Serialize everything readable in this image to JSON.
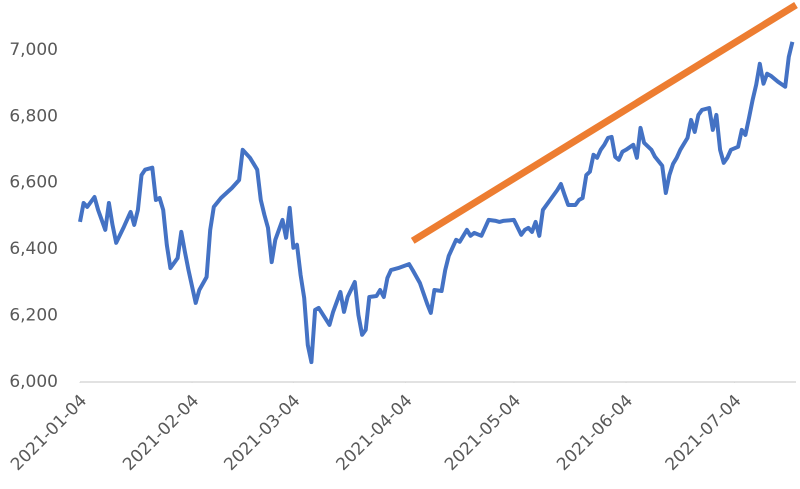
{
  "chart_data": {
    "type": "line",
    "xlim": [
      "2021-01-04",
      "2021-07-21"
    ],
    "xticks": [
      "2021-01-04",
      "2021-02-04",
      "2021-03-04",
      "2021-04-04",
      "2021-05-04",
      "2021-06-04",
      "2021-07-04"
    ],
    "ylim": [
      6000,
      7150
    ],
    "yticks": [
      {
        "value": 6000,
        "label": "6,000"
      },
      {
        "value": 6200,
        "label": "6,200"
      },
      {
        "value": 6400,
        "label": "6,400"
      },
      {
        "value": 6600,
        "label": "6,600"
      },
      {
        "value": 6800,
        "label": "6,800"
      },
      {
        "value": 7000,
        "label": "7,000"
      }
    ],
    "grid": false,
    "series": [
      {
        "color": "#4472c4",
        "x": [
          "2021-01-04",
          "2021-01-05",
          "2021-01-06",
          "2021-01-08",
          "2021-01-09",
          "2021-01-11",
          "2021-01-12",
          "2021-01-13",
          "2021-01-14",
          "2021-01-16",
          "2021-01-18",
          "2021-01-19",
          "2021-01-20",
          "2021-01-21",
          "2021-01-22",
          "2021-01-24",
          "2021-01-25",
          "2021-01-26",
          "2021-01-27",
          "2021-01-28",
          "2021-01-29",
          "2021-01-31",
          "2021-02-01",
          "2021-02-02",
          "2021-02-03",
          "2021-02-05",
          "2021-02-06",
          "2021-02-08",
          "2021-02-09",
          "2021-02-10",
          "2021-02-12",
          "2021-02-15",
          "2021-02-17",
          "2021-02-18",
          "2021-02-20",
          "2021-02-22",
          "2021-02-23",
          "2021-02-24",
          "2021-02-25",
          "2021-02-26",
          "2021-02-27",
          "2021-03-01",
          "2021-03-02",
          "2021-03-03",
          "2021-03-04",
          "2021-03-05",
          "2021-03-06",
          "2021-03-07",
          "2021-03-08",
          "2021-03-09",
          "2021-03-10",
          "2021-03-11",
          "2021-03-14",
          "2021-03-15",
          "2021-03-17",
          "2021-03-18",
          "2021-03-19",
          "2021-03-21",
          "2021-03-22",
          "2021-03-23",
          "2021-03-24",
          "2021-03-25",
          "2021-03-27",
          "2021-03-28",
          "2021-03-29",
          "2021-03-30",
          "2021-03-31",
          "2021-04-02",
          "2021-04-05",
          "2021-04-06",
          "2021-04-08",
          "2021-04-10",
          "2021-04-11",
          "2021-04-12",
          "2021-04-14",
          "2021-04-15",
          "2021-04-16",
          "2021-04-18",
          "2021-04-19",
          "2021-04-21",
          "2021-04-22",
          "2021-04-23",
          "2021-04-25",
          "2021-04-27",
          "2021-04-29",
          "2021-04-30",
          "2021-05-01",
          "2021-05-04",
          "2021-05-06",
          "2021-05-07",
          "2021-05-08",
          "2021-05-09",
          "2021-05-10",
          "2021-05-11",
          "2021-05-12",
          "2021-05-14",
          "2021-05-16",
          "2021-05-17",
          "2021-05-18",
          "2021-05-19",
          "2021-05-21",
          "2021-05-22",
          "2021-05-23",
          "2021-05-24",
          "2021-05-25",
          "2021-05-26",
          "2021-05-27",
          "2021-05-28",
          "2021-05-29",
          "2021-05-30",
          "2021-05-31",
          "2021-06-01",
          "2021-06-02",
          "2021-06-03",
          "2021-06-04",
          "2021-06-06",
          "2021-06-07",
          "2021-06-08",
          "2021-06-09",
          "2021-06-11",
          "2021-06-12",
          "2021-06-14",
          "2021-06-15",
          "2021-06-16",
          "2021-06-17",
          "2021-06-18",
          "2021-06-19",
          "2021-06-21",
          "2021-06-22",
          "2021-06-23",
          "2021-06-24",
          "2021-06-25",
          "2021-06-27",
          "2021-06-28",
          "2021-06-29",
          "2021-06-30",
          "2021-07-01",
          "2021-07-02",
          "2021-07-03",
          "2021-07-05",
          "2021-07-06",
          "2021-07-07",
          "2021-07-08",
          "2021-07-09",
          "2021-07-10",
          "2021-07-11",
          "2021-07-12",
          "2021-07-13",
          "2021-07-14",
          "2021-07-16",
          "2021-07-18",
          "2021-07-19",
          "2021-07-20"
        ],
        "values": [
          6482,
          6539,
          6527,
          6557,
          6518,
          6458,
          6539,
          6473,
          6419,
          6464,
          6512,
          6473,
          6518,
          6623,
          6639,
          6645,
          6548,
          6554,
          6518,
          6413,
          6343,
          6373,
          6452,
          6392,
          6337,
          6238,
          6277,
          6316,
          6458,
          6527,
          6554,
          6584,
          6608,
          6699,
          6675,
          6639,
          6548,
          6503,
          6464,
          6361,
          6428,
          6488,
          6434,
          6524,
          6404,
          6413,
          6322,
          6253,
          6111,
          6060,
          6217,
          6223,
          6172,
          6211,
          6271,
          6211,
          6256,
          6301,
          6202,
          6142,
          6157,
          6256,
          6259,
          6277,
          6256,
          6313,
          6337,
          6343,
          6355,
          6337,
          6298,
          6235,
          6208,
          6277,
          6274,
          6337,
          6380,
          6428,
          6422,
          6458,
          6440,
          6449,
          6440,
          6488,
          6485,
          6482,
          6485,
          6488,
          6443,
          6458,
          6464,
          6452,
          6482,
          6440,
          6518,
          6548,
          6578,
          6596,
          6563,
          6533,
          6533,
          6548,
          6554,
          6623,
          6633,
          6684,
          6675,
          6699,
          6714,
          6735,
          6738,
          6678,
          6669,
          6693,
          6699,
          6714,
          6675,
          6765,
          6720,
          6699,
          6678,
          6651,
          6569,
          6623,
          6657,
          6675,
          6699,
          6735,
          6789,
          6753,
          6804,
          6819,
          6825,
          6759,
          6804,
          6699,
          6660,
          6675,
          6699,
          6708,
          6759,
          6744,
          6795,
          6849,
          6895,
          6958,
          6898,
          6928,
          6922,
          6904,
          6889,
          6979,
          7024
        ]
      },
      {
        "color": "#ed7d31",
        "x": [
          "2021-04-06",
          "2021-07-21"
        ],
        "values": [
          6425,
          7135
        ]
      }
    ]
  }
}
